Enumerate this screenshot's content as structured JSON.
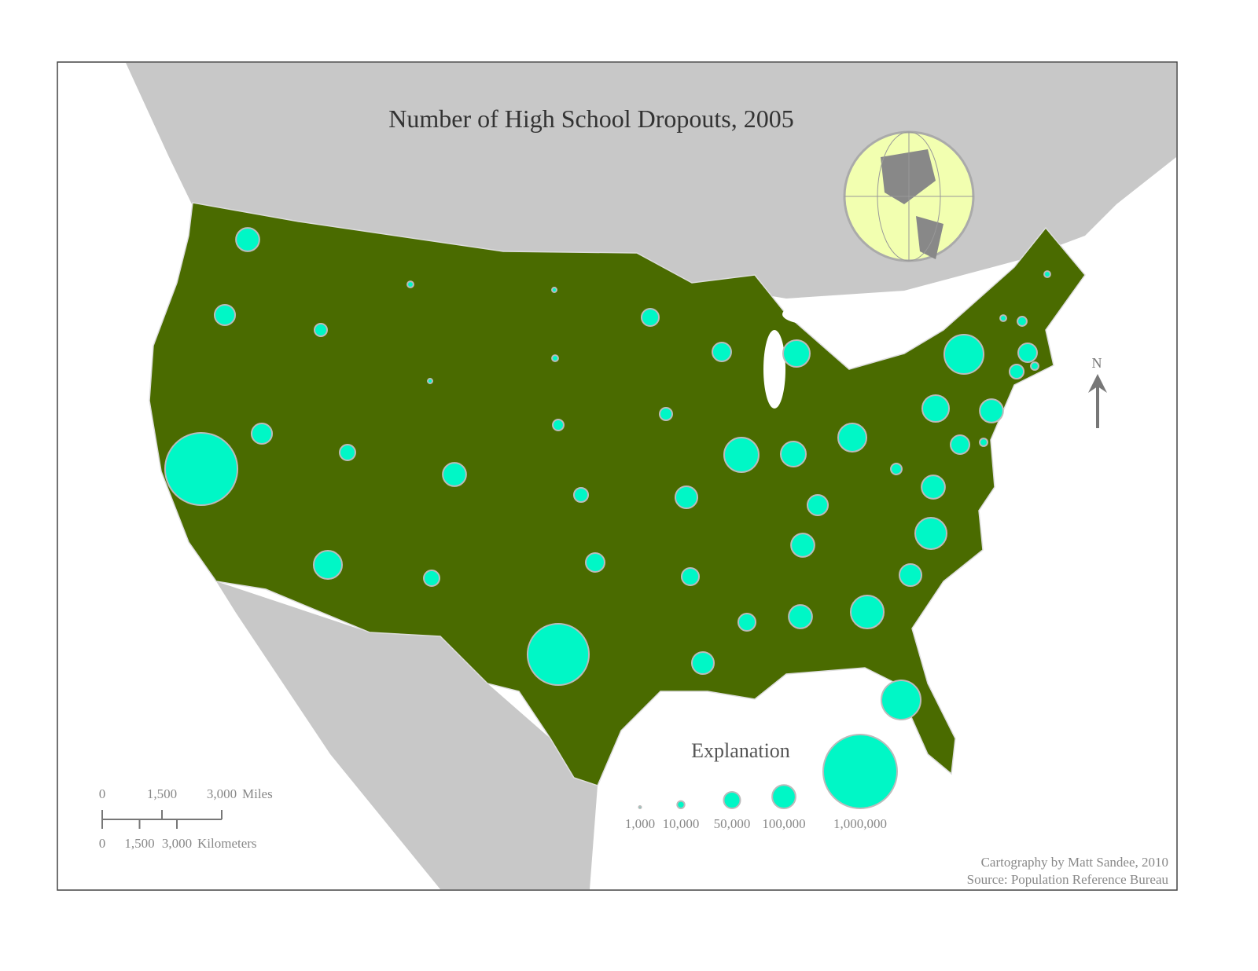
{
  "header": {
    "title": "Number of High School Dropouts, 2005"
  },
  "symbols": {
    "values": [
      100000,
      77000,
      960000,
      77000,
      29000,
      7000,
      4000,
      45000,
      147000,
      100000,
      45000,
      4000,
      7000,
      22000,
      37000,
      65000,
      690000,
      55000,
      29000,
      89000,
      55000,
      89000,
      65000,
      219000,
      131000,
      116000,
      147000,
      77000,
      100000,
      55000,
      100000,
      200000,
      283000,
      89000,
      181000,
      100000,
      22000,
      131000,
      283000,
      100000,
      65000,
      11000,
      37000,
      11000,
      65000,
      7000,
      16000,
      7000
    ],
    "color": "#00f7c6"
  },
  "legend": {
    "title": "Explanation",
    "items": [
      {
        "value": 1000,
        "label": "1,000"
      },
      {
        "value": 10000,
        "label": "10,000"
      },
      {
        "value": 50000,
        "label": "50,000"
      },
      {
        "value": 100000,
        "label": "100,000"
      },
      {
        "value": 1000000,
        "label": "1,000,000"
      }
    ]
  },
  "scale_bar": {
    "miles": {
      "ticks": [
        0,
        {
          "value": 1500,
          "label": "1,500"
        },
        {
          "value": 3000,
          "label": "3,000"
        }
      ],
      "unit": "Miles"
    },
    "kilometers": {
      "ticks": [
        0,
        {
          "value": 1500,
          "label": "1,500"
        },
        {
          "value": 3000,
          "label": "3,000"
        }
      ],
      "unit": "Kilometers"
    }
  },
  "north_arrow": "N",
  "credits": [
    "Cartography by Matt Sandee, 2010",
    "Source: Population Reference Bureau"
  ]
}
